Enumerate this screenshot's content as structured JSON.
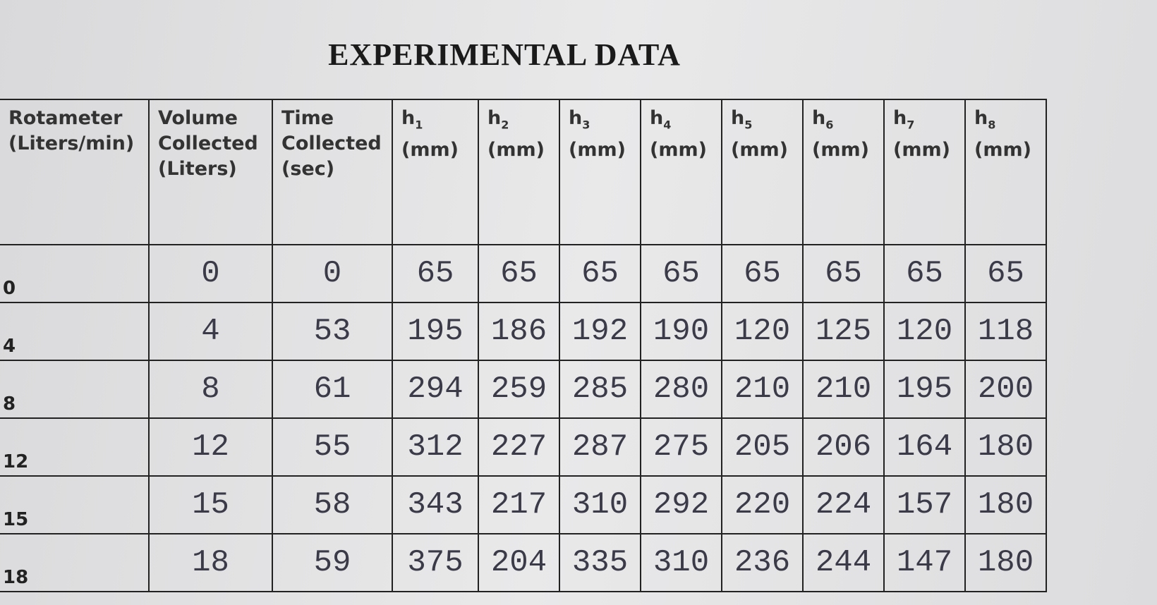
{
  "title": "EXPERIMENTAL DATA",
  "table": {
    "header": [
      {
        "lines": [
          "Rotameter",
          "(Liters/min)"
        ]
      },
      {
        "lines": [
          "Volume",
          "Collected",
          "(Liters)"
        ]
      },
      {
        "lines": [
          "Time",
          "Collected",
          "(sec)"
        ]
      },
      {
        "symbol": "h",
        "sub": "1",
        "unit": "(mm)"
      },
      {
        "symbol": "h",
        "sub": "2",
        "unit": "(mm)"
      },
      {
        "symbol": "h",
        "sub": "3",
        "unit": "(mm)"
      },
      {
        "symbol": "h",
        "sub": "4",
        "unit": "(mm)"
      },
      {
        "symbol": "h",
        "sub": "5",
        "unit": "(mm)"
      },
      {
        "symbol": "h",
        "sub": "6",
        "unit": "(mm)"
      },
      {
        "symbol": "h",
        "sub": "7",
        "unit": "(mm)"
      },
      {
        "symbol": "h",
        "sub": "8",
        "unit": "(mm)"
      }
    ],
    "rows": [
      [
        0,
        0,
        0,
        65,
        65,
        65,
        65,
        65,
        65,
        65,
        65
      ],
      [
        4,
        4,
        53,
        195,
        186,
        192,
        190,
        120,
        125,
        120,
        118
      ],
      [
        8,
        8,
        61,
        294,
        259,
        285,
        280,
        210,
        210,
        195,
        200
      ],
      [
        12,
        12,
        55,
        312,
        227,
        287,
        275,
        205,
        206,
        164,
        180
      ],
      [
        15,
        15,
        58,
        343,
        217,
        310,
        292,
        220,
        224,
        157,
        180
      ],
      [
        18,
        18,
        59,
        375,
        204,
        335,
        310,
        236,
        244,
        147,
        180
      ]
    ]
  }
}
